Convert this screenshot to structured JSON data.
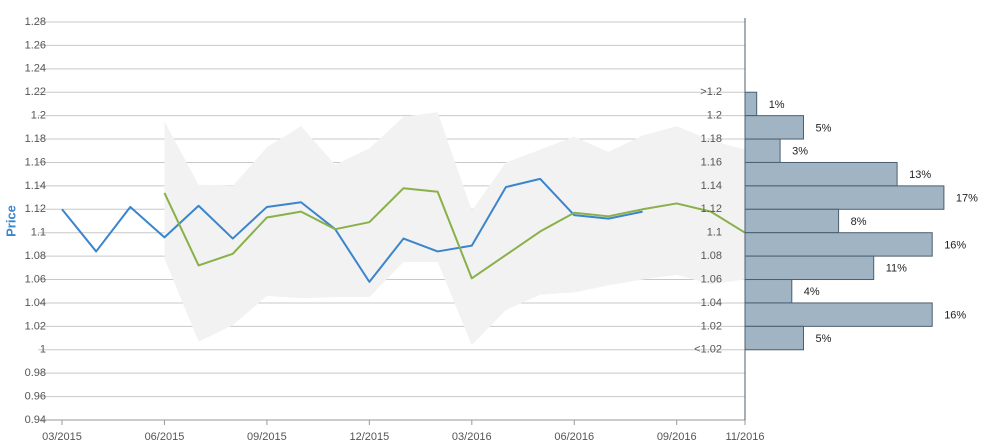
{
  "chart_data": [
    {
      "type": "line",
      "y_label": "Price",
      "categories": [
        "03/2015",
        null,
        null,
        "06/2015",
        null,
        null,
        "09/2015",
        null,
        null,
        "12/2015",
        null,
        null,
        "03/2016",
        null,
        null,
        "06/2016",
        null,
        null,
        "09/2016",
        null,
        "11/2016"
      ],
      "ylim": [
        0.94,
        1.28
      ],
      "yticks": [
        0.94,
        0.96,
        0.98,
        1,
        1.02,
        1.04,
        1.06,
        1.08,
        1.1,
        1.12,
        1.14,
        1.16,
        1.18,
        1.2,
        1.22,
        1.24,
        1.26,
        1.28
      ],
      "grid": true,
      "band": {
        "color": "#f2f2f2",
        "upper": [
          null,
          null,
          null,
          1.195,
          1.141,
          1.14,
          1.173,
          1.191,
          1.158,
          1.172,
          1.199,
          1.203,
          1.119,
          1.16,
          1.171,
          1.182,
          1.169,
          1.183,
          1.191,
          1.179,
          1.171
        ],
        "lower": [
          null,
          null,
          null,
          1.078,
          1.007,
          1.021,
          1.046,
          1.044,
          1.045,
          1.045,
          1.075,
          1.075,
          1.004,
          1.034,
          1.047,
          1.049,
          1.055,
          1.06,
          1.064,
          1.056,
          1.06
        ]
      },
      "series": [
        {
          "color": "#3a85cc",
          "values": [
            1.12,
            1.084,
            1.122,
            1.096,
            1.123,
            1.095,
            1.122,
            1.126,
            1.103,
            1.058,
            1.095,
            1.084,
            1.089,
            1.139,
            1.146,
            1.115,
            1.112,
            1.118,
            null,
            null,
            null
          ]
        },
        {
          "color": "#8ab04a",
          "values": [
            null,
            null,
            null,
            1.134,
            1.072,
            1.082,
            1.113,
            1.118,
            1.103,
            1.109,
            1.138,
            1.135,
            1.061,
            1.081,
            1.101,
            1.117,
            1.114,
            1.12,
            1.125,
            1.118,
            1.1
          ]
        }
      ]
    },
    {
      "type": "histogram",
      "bins": [
        {
          "value": 1.22,
          "label": ">1.2"
        },
        1.2,
        1.18,
        1.16,
        1.14,
        1.12,
        1.1,
        1.08,
        1.06,
        1.04,
        1.02,
        {
          "value": 1,
          "label": "<1.02"
        }
      ],
      "values": [
        1,
        5,
        3,
        13,
        17,
        8,
        16,
        11,
        4,
        16,
        5
      ],
      "value_labels": [
        "1%",
        "5%",
        "3%",
        "13%",
        "17%",
        "8%",
        "16%",
        "11%",
        "4%",
        "16%",
        "5%"
      ],
      "color": "#a0b4c3",
      "edge_color": "#4a5f70"
    }
  ]
}
